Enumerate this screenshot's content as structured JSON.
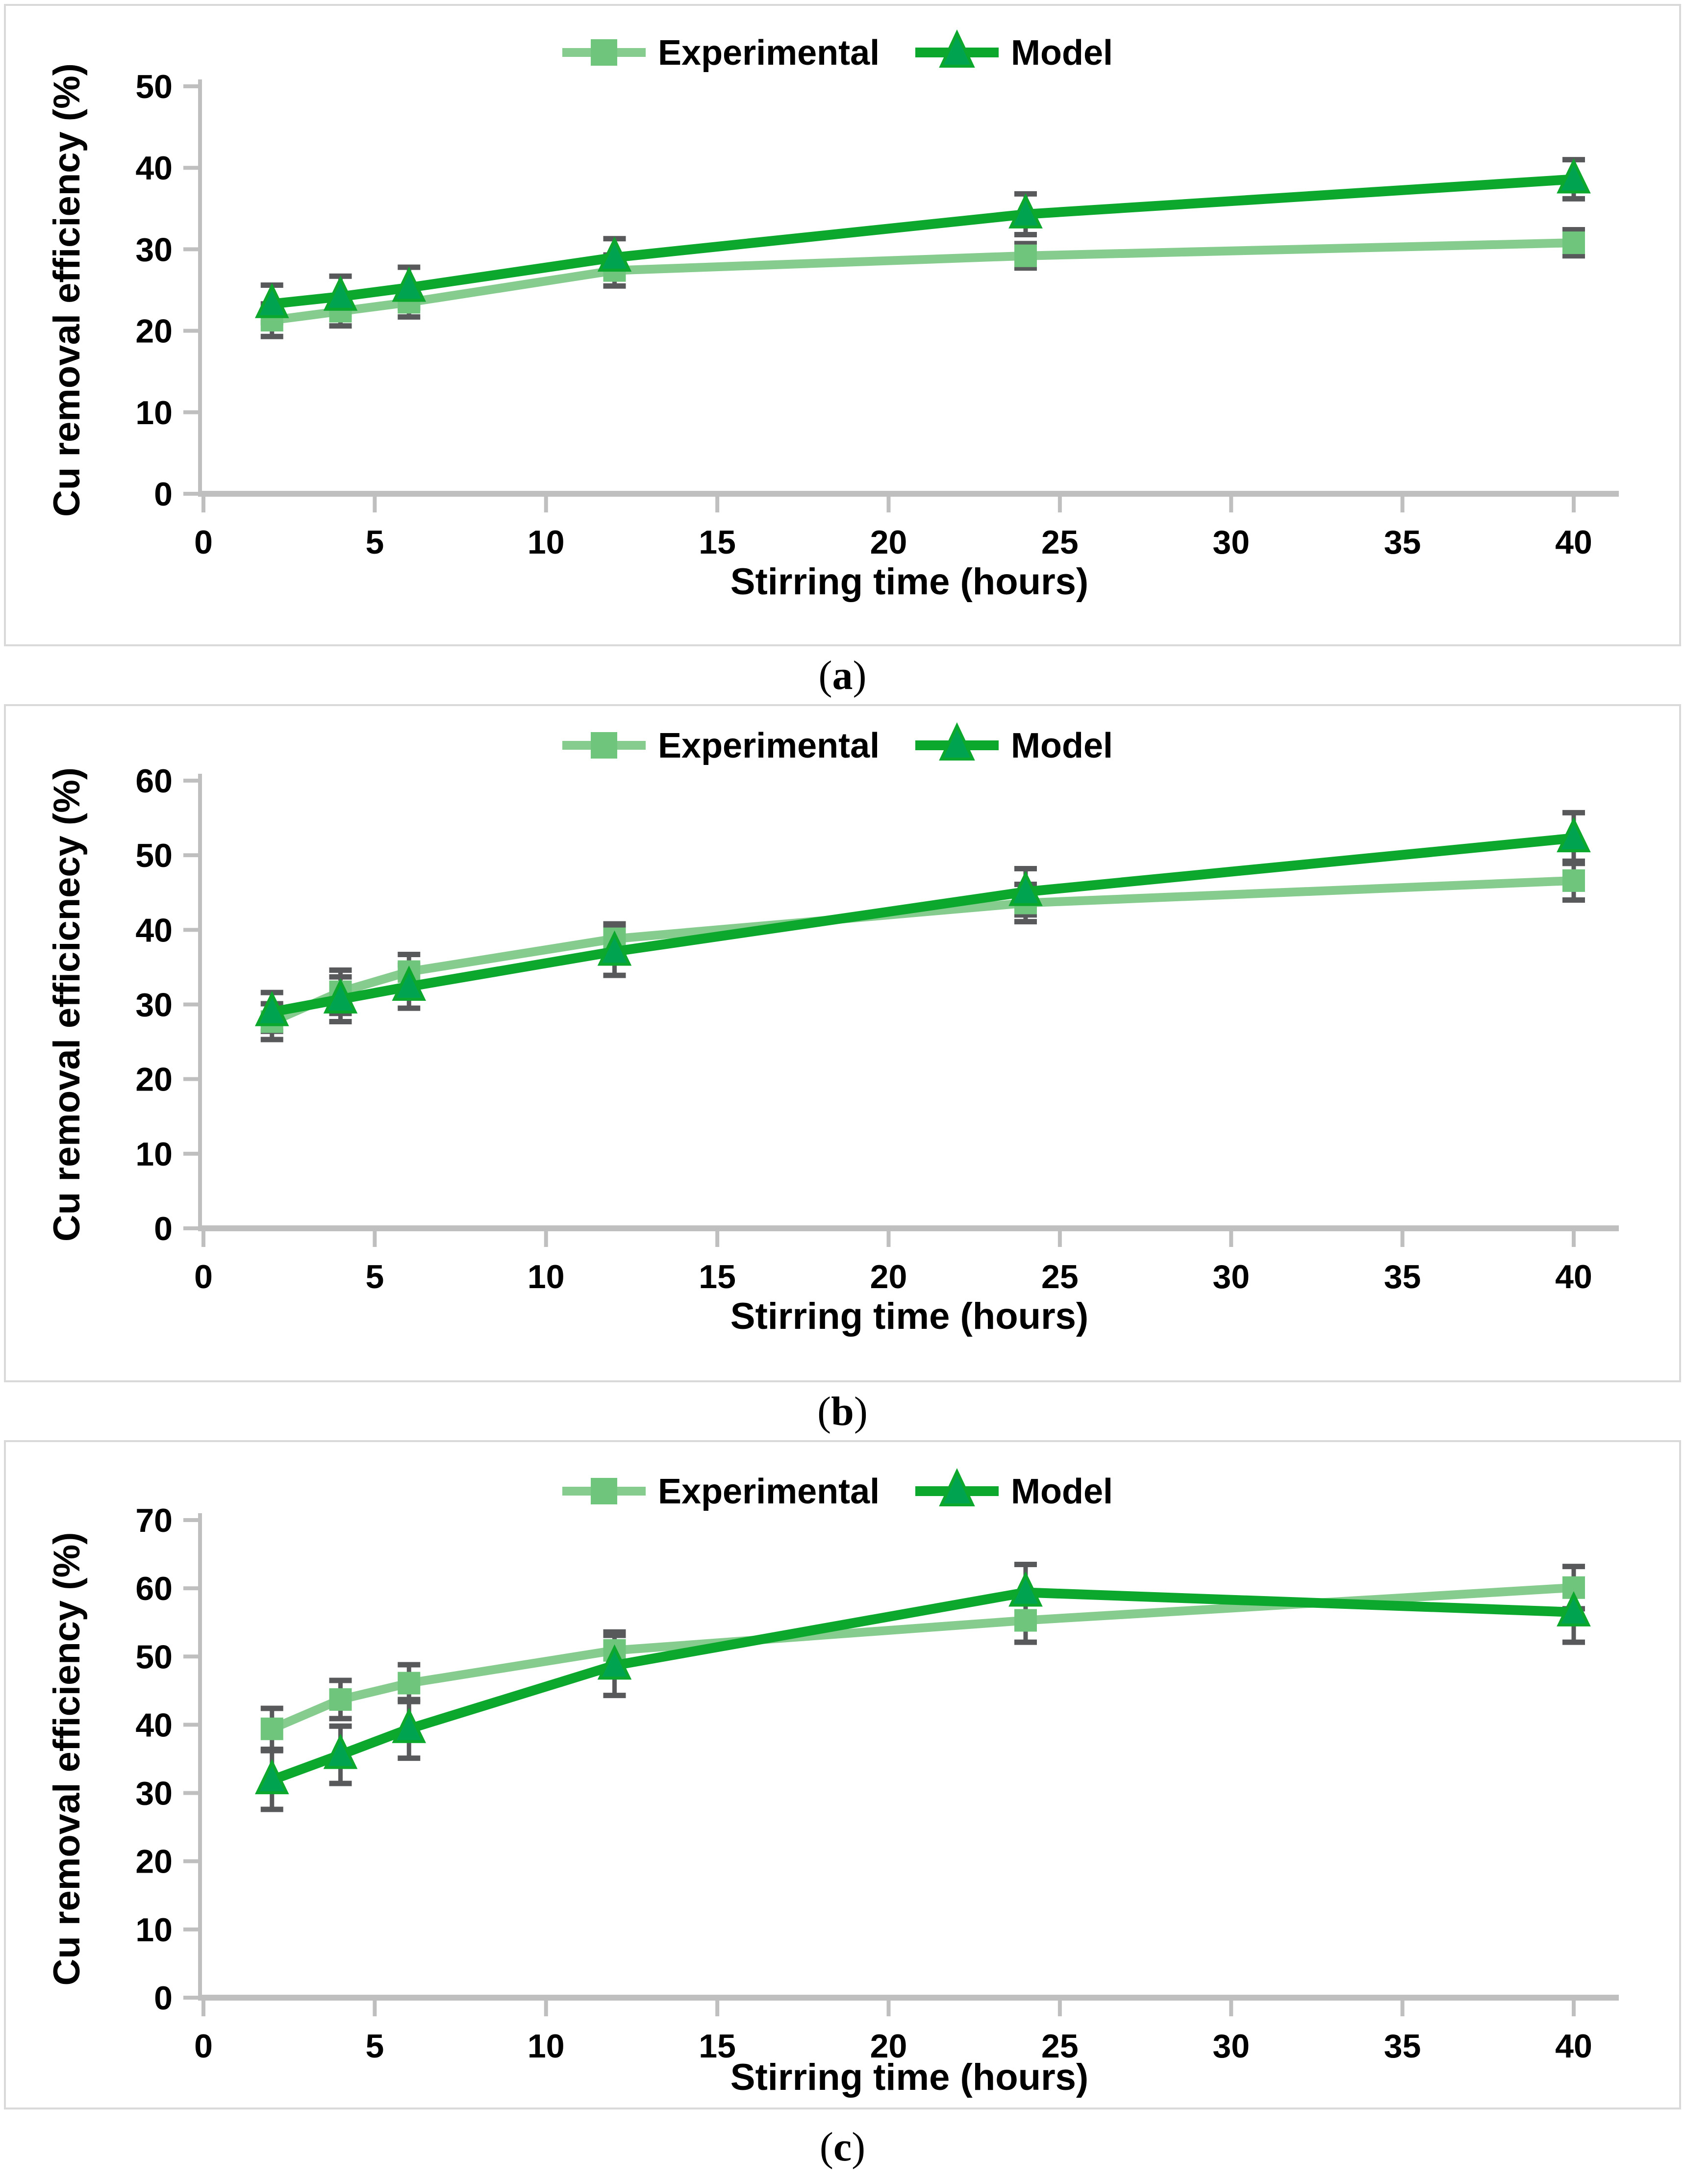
{
  "figure": {
    "description": "Three stacked line charts of Cu removal efficiency versus stirring time, experimental vs model",
    "colors": {
      "experimental_line": "#86CC8E",
      "experimental_marker": "#6FC57C",
      "model_line": "#0CA82D",
      "model_marker": "#00A350",
      "error_bar": "#58595B",
      "axis": "#BFBFBF",
      "panel_border": "#D9D9D9",
      "text": "#000000"
    }
  },
  "chart_data": [
    {
      "type": "line",
      "panel_id": "a",
      "title": "",
      "xlabel": "Stirring time (hours)",
      "ylabel": "Cu removal efficiency (%)",
      "x": [
        2,
        4,
        6,
        12,
        24,
        40
      ],
      "xticks": [
        0,
        5,
        10,
        15,
        20,
        25,
        30,
        35,
        40
      ],
      "xlim": [
        0,
        41.3
      ],
      "ylim": [
        0,
        50
      ],
      "yticks": [
        0,
        10,
        20,
        30,
        40,
        50
      ],
      "grid": false,
      "legend_position": "top-center",
      "series": [
        {
          "name": "Experimental",
          "marker": "square",
          "values": [
            21.3,
            22.4,
            23.5,
            27.4,
            29.2,
            30.8
          ],
          "errors": [
            2.0,
            1.8,
            1.8,
            1.9,
            1.5,
            1.6
          ]
        },
        {
          "name": "Model",
          "marker": "triangle",
          "values": [
            23.3,
            24.2,
            25.3,
            29.0,
            34.3,
            38.6
          ],
          "errors": [
            2.3,
            2.5,
            2.5,
            2.3,
            2.5,
            2.4
          ]
        }
      ],
      "caption": {
        "open": "(",
        "letter": "a",
        "close": ")"
      }
    },
    {
      "type": "line",
      "panel_id": "b",
      "title": "",
      "xlabel": "Stirring time (hours)",
      "ylabel": "Cu removal efficicnecy (%)",
      "x": [
        2,
        4,
        6,
        12,
        24,
        40
      ],
      "xticks": [
        0,
        5,
        10,
        15,
        20,
        25,
        30,
        35,
        40
      ],
      "xlim": [
        0,
        41.3
      ],
      "ylim": [
        0,
        60
      ],
      "yticks": [
        0,
        10,
        20,
        30,
        40,
        50,
        60
      ],
      "grid": false,
      "legend_position": "top-center",
      "series": [
        {
          "name": "Experimental",
          "marker": "square",
          "values": [
            27.7,
            31.7,
            34.4,
            38.8,
            43.6,
            46.6
          ],
          "errors": [
            2.4,
            2.9,
            2.3,
            2.0,
            2.5,
            2.6
          ]
        },
        {
          "name": "Model",
          "marker": "triangle",
          "values": [
            29.0,
            30.7,
            32.4,
            37.1,
            45.1,
            52.3
          ],
          "errors": [
            2.6,
            3.0,
            2.9,
            3.2,
            3.1,
            3.4
          ]
        }
      ],
      "caption": {
        "open": "(",
        "letter": "b",
        "close": ")"
      }
    },
    {
      "type": "line",
      "panel_id": "c",
      "title": "",
      "xlabel": "Stirring time (hours)",
      "ylabel": "Cu removal efficiency (%)",
      "x": [
        2,
        4,
        6,
        12,
        24,
        40
      ],
      "xticks": [
        0,
        5,
        10,
        15,
        20,
        25,
        30,
        35,
        40
      ],
      "xlim": [
        0,
        41.3
      ],
      "ylim": [
        0,
        70
      ],
      "yticks": [
        0,
        10,
        20,
        30,
        40,
        50,
        60,
        70
      ],
      "grid": false,
      "legend_position": "top-center",
      "series": [
        {
          "name": "Experimental",
          "marker": "square",
          "values": [
            39.4,
            43.7,
            46.1,
            50.9,
            55.3,
            60.1
          ],
          "errors": [
            3.0,
            2.8,
            2.7,
            2.7,
            3.2,
            3.1
          ]
        },
        {
          "name": "Model",
          "marker": "triangle",
          "values": [
            31.9,
            35.6,
            39.4,
            48.7,
            59.4,
            56.5
          ],
          "errors": [
            4.3,
            4.2,
            4.3,
            4.4,
            4.1,
            4.4
          ]
        }
      ],
      "caption": {
        "open": "(",
        "letter": "c",
        "close": ")"
      }
    }
  ]
}
